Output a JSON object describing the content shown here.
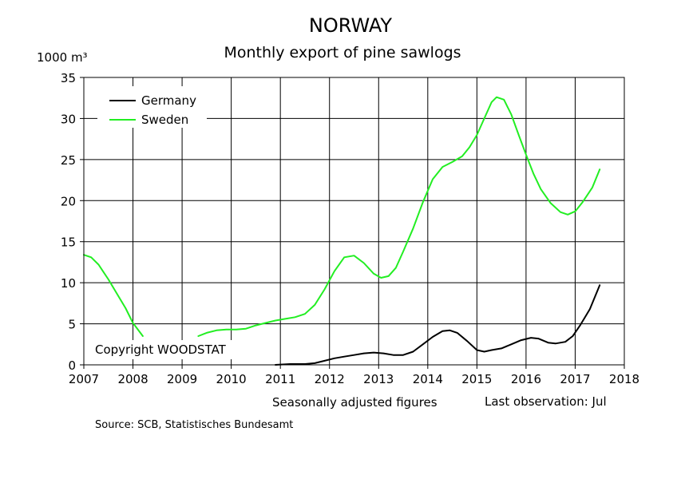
{
  "chart_data": {
    "type": "line",
    "title": "NORWAY",
    "subtitle": "Monthly export of pine sawlogs",
    "ylabel": "1000 m³",
    "xlabel": "",
    "xlim": [
      2007,
      2018
    ],
    "ylim": [
      0,
      35
    ],
    "x_ticks": [
      "2007",
      "2008",
      "2009",
      "2010",
      "2011",
      "2012",
      "2013",
      "2014",
      "2015",
      "2016",
      "2017",
      "2018"
    ],
    "y_ticks": [
      "0",
      "5",
      "10",
      "15",
      "20",
      "25",
      "30",
      "35"
    ],
    "grid": true,
    "legend_position": "top-left",
    "copyright": "Copyright WOODSTAT",
    "note_seasonal": "Seasonally adjusted figures",
    "note_last_observation": "Last observation: Jul",
    "source": "Source: SCB, Statistisches Bundesamt",
    "series": [
      {
        "name": "Germany",
        "color": "#000000",
        "segments": [
          [
            [
              2010.9,
              0.0
            ],
            [
              2011.2,
              0.1
            ],
            [
              2011.5,
              0.1
            ],
            [
              2011.7,
              0.2
            ],
            [
              2011.9,
              0.5
            ],
            [
              2012.1,
              0.8
            ],
            [
              2012.3,
              1.0
            ],
            [
              2012.5,
              1.2
            ],
            [
              2012.7,
              1.4
            ],
            [
              2012.9,
              1.5
            ],
            [
              2013.1,
              1.4
            ],
            [
              2013.3,
              1.2
            ],
            [
              2013.5,
              1.2
            ],
            [
              2013.7,
              1.6
            ],
            [
              2013.9,
              2.5
            ],
            [
              2014.1,
              3.4
            ],
            [
              2014.3,
              4.1
            ],
            [
              2014.45,
              4.2
            ],
            [
              2014.6,
              3.9
            ],
            [
              2014.8,
              2.9
            ],
            [
              2015.0,
              1.8
            ],
            [
              2015.15,
              1.6
            ],
            [
              2015.3,
              1.8
            ],
            [
              2015.5,
              2.0
            ],
            [
              2015.7,
              2.5
            ],
            [
              2015.9,
              3.0
            ],
            [
              2016.1,
              3.3
            ],
            [
              2016.25,
              3.2
            ],
            [
              2016.45,
              2.7
            ],
            [
              2016.6,
              2.6
            ],
            [
              2016.8,
              2.8
            ],
            [
              2016.95,
              3.5
            ],
            [
              2017.1,
              4.8
            ],
            [
              2017.3,
              6.8
            ],
            [
              2017.5,
              9.7
            ]
          ]
        ]
      },
      {
        "name": "Sweden",
        "color": "#22ee22",
        "segments": [
          [
            [
              2007.0,
              13.4
            ],
            [
              2007.15,
              13.1
            ],
            [
              2007.3,
              12.2
            ],
            [
              2007.5,
              10.4
            ],
            [
              2007.7,
              8.4
            ],
            [
              2007.85,
              6.9
            ],
            [
              2008.0,
              5.1
            ],
            [
              2008.2,
              3.5
            ]
          ],
          [
            [
              2009.33,
              3.5
            ],
            [
              2009.5,
              3.9
            ],
            [
              2009.7,
              4.2
            ],
            [
              2009.9,
              4.3
            ],
            [
              2010.1,
              4.3
            ],
            [
              2010.3,
              4.4
            ],
            [
              2010.5,
              4.8
            ],
            [
              2010.7,
              5.1
            ],
            [
              2010.9,
              5.4
            ],
            [
              2011.1,
              5.6
            ],
            [
              2011.3,
              5.8
            ],
            [
              2011.5,
              6.2
            ],
            [
              2011.7,
              7.3
            ],
            [
              2011.9,
              9.2
            ],
            [
              2012.1,
              11.4
            ],
            [
              2012.3,
              13.1
            ],
            [
              2012.5,
              13.3
            ],
            [
              2012.7,
              12.4
            ],
            [
              2012.9,
              11.1
            ],
            [
              2013.05,
              10.6
            ],
            [
              2013.2,
              10.8
            ],
            [
              2013.35,
              11.8
            ],
            [
              2013.5,
              13.8
            ],
            [
              2013.7,
              16.6
            ],
            [
              2013.9,
              19.8
            ],
            [
              2014.1,
              22.6
            ],
            [
              2014.3,
              24.1
            ],
            [
              2014.5,
              24.7
            ],
            [
              2014.7,
              25.4
            ],
            [
              2014.85,
              26.5
            ],
            [
              2015.0,
              28.0
            ],
            [
              2015.15,
              30.0
            ],
            [
              2015.3,
              32.0
            ],
            [
              2015.4,
              32.6
            ],
            [
              2015.55,
              32.3
            ],
            [
              2015.7,
              30.5
            ],
            [
              2015.85,
              28.0
            ],
            [
              2016.0,
              25.6
            ],
            [
              2016.15,
              23.3
            ],
            [
              2016.3,
              21.4
            ],
            [
              2016.5,
              19.7
            ],
            [
              2016.7,
              18.6
            ],
            [
              2016.85,
              18.3
            ],
            [
              2017.0,
              18.7
            ],
            [
              2017.15,
              19.8
            ],
            [
              2017.35,
              21.6
            ],
            [
              2017.5,
              23.8
            ]
          ]
        ]
      }
    ]
  }
}
